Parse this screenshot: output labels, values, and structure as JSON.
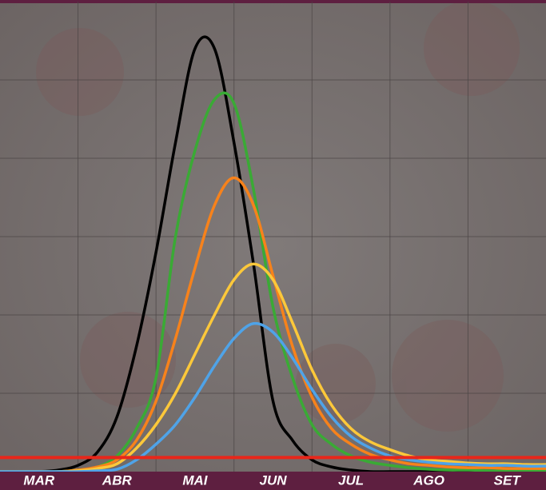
{
  "chart_data": {
    "type": "line",
    "categories": [
      "MAR",
      "ABR",
      "MAI",
      "JUN",
      "JUL",
      "AGO",
      "SET"
    ],
    "x": [
      0,
      0.25,
      0.5,
      0.75,
      1,
      1.25,
      1.5,
      1.75,
      2,
      2.25,
      2.5,
      2.75,
      3,
      3.25,
      3.5,
      3.75,
      4,
      4.25,
      4.5,
      4.75,
      5,
      5.25,
      5.5,
      5.75,
      6,
      6.25,
      6.5,
      6.75,
      7
    ],
    "xlim": [
      0,
      7
    ],
    "ylim": [
      0,
      6
    ],
    "yticks": [
      1,
      2,
      3,
      4,
      5
    ],
    "grid": true,
    "series": [
      {
        "color": "#000000",
        "values": [
          0,
          0,
          0,
          0.02,
          0.08,
          0.25,
          0.7,
          1.6,
          2.8,
          4.2,
          5.4,
          5.4,
          4.2,
          2.65,
          0.9,
          0.4,
          0.15,
          0.06,
          0.02,
          0,
          0,
          0,
          0,
          0,
          0,
          0,
          0,
          0,
          0
        ]
      },
      {
        "color": "#3aaa35",
        "values": [
          0,
          0,
          0,
          0,
          0.02,
          0.06,
          0.2,
          0.55,
          1.2,
          3.0,
          4.1,
          4.75,
          4.7,
          3.6,
          2.1,
          1.2,
          0.6,
          0.35,
          0.2,
          0.12,
          0.08,
          0.05,
          0.03,
          0.02,
          0.02,
          0.01,
          0.01,
          0.01,
          0.01
        ]
      },
      {
        "color": "#f7821b",
        "values": [
          0,
          0,
          0,
          0,
          0.02,
          0.06,
          0.15,
          0.4,
          0.9,
          1.7,
          2.6,
          3.4,
          3.75,
          3.4,
          2.5,
          1.6,
          0.95,
          0.55,
          0.35,
          0.22,
          0.15,
          0.1,
          0.08,
          0.06,
          0.05,
          0.05,
          0.04,
          0.04,
          0.04
        ]
      },
      {
        "color": "#fcc83a",
        "values": [
          0,
          0,
          0,
          0,
          0.01,
          0.04,
          0.1,
          0.3,
          0.6,
          1.0,
          1.5,
          2.0,
          2.45,
          2.65,
          2.45,
          1.9,
          1.3,
          0.85,
          0.55,
          0.38,
          0.28,
          0.2,
          0.15,
          0.13,
          0.11,
          0.1,
          0.1,
          0.09,
          0.09
        ]
      },
      {
        "color": "#4fa3e8",
        "values": [
          0,
          0,
          0,
          0,
          0,
          0.01,
          0.03,
          0.15,
          0.35,
          0.6,
          0.95,
          1.35,
          1.7,
          1.89,
          1.78,
          1.45,
          1.05,
          0.7,
          0.45,
          0.3,
          0.2,
          0.15,
          0.12,
          0.1,
          0.09,
          0.08,
          0.08,
          0.07,
          0.07
        ]
      }
    ],
    "threshold": {
      "value": 0.18,
      "color": "#e8261a"
    }
  }
}
